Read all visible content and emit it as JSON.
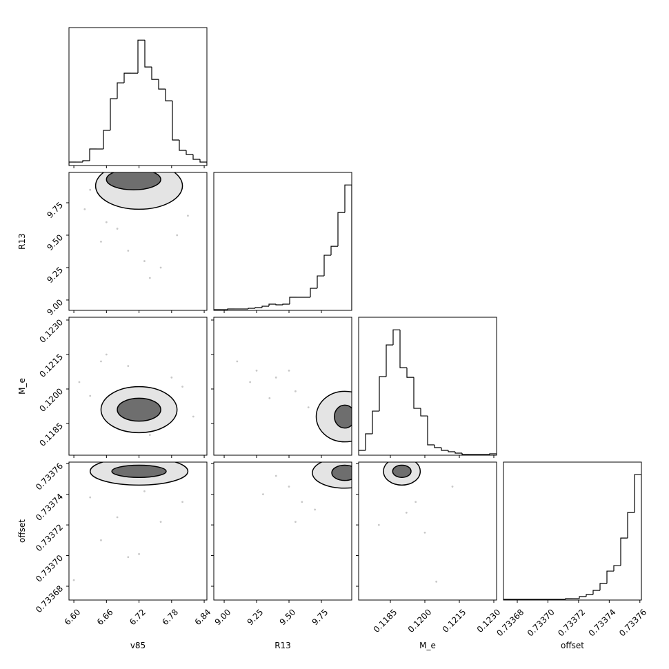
{
  "chart_data": {
    "type": "corner",
    "variables": [
      {
        "name": "v85",
        "range": [
          6.591,
          6.845
        ],
        "ticks": [
          {
            "value": 6.6,
            "label": "6.60"
          },
          6.66,
          6.72,
          6.78,
          6.84
        ],
        "bins": [
          6.591,
          6.6037,
          6.6164,
          6.6291,
          6.6418,
          6.6545,
          6.6672,
          6.6799,
          6.6926,
          6.7053,
          6.718,
          6.7307,
          6.7434,
          6.7561,
          6.7688,
          6.7815,
          6.7942,
          6.8069,
          6.8196,
          6.8323,
          6.845
        ],
        "counts": [
          5,
          5,
          7,
          24,
          24,
          51,
          97,
          120,
          134,
          134,
          182,
          143,
          125,
          111,
          94,
          37,
          22,
          16,
          9,
          5
        ]
      },
      {
        "name": "R13",
        "range": [
          8.92,
          9.984
        ],
        "ticks": [
          {
            "value": 9,
            "label": "9.00"
          },
          9.25,
          {
            "value": 9.5,
            "label": "9.50"
          },
          9.75
        ],
        "bins": [
          8.92,
          8.9732,
          9.0264,
          9.0796,
          9.1328,
          9.186,
          9.2392,
          9.2924,
          9.3456,
          9.3988,
          9.452,
          9.5052,
          9.5584,
          9.6116,
          9.6648,
          9.718,
          9.7712,
          9.8244,
          9.8776,
          9.9308,
          9.984
        ],
        "counts": [
          1,
          1,
          2,
          2,
          2,
          3,
          4,
          6,
          9,
          8,
          9,
          19,
          19,
          19,
          32,
          50,
          80,
          93,
          142,
          182
        ]
      },
      {
        "name": "M_e",
        "range": [
          0.11712,
          0.12312
        ],
        "ticks": [
          0.1185,
          {
            "value": 0.12,
            "label": "0.1200"
          },
          0.1215,
          {
            "value": 0.123,
            "label": "0.1230"
          }
        ],
        "bins": [
          0.11712,
          0.11742,
          0.11772,
          0.11802,
          0.11832,
          0.11862,
          0.11892,
          0.11922,
          0.11952,
          0.11982,
          0.12012,
          0.12042,
          0.12072,
          0.12102,
          0.12132,
          0.12162,
          0.12192,
          0.12222,
          0.12252,
          0.12282,
          0.12312
        ],
        "counts": [
          7,
          31,
          64,
          114,
          160,
          182,
          127,
          113,
          68,
          57,
          15,
          11,
          7,
          5,
          3,
          1,
          1,
          1,
          1,
          2
        ]
      },
      {
        "name": "offset",
        "range": [
          0.733671,
          0.733761
        ],
        "ticks": [
          0.73368,
          {
            "value": 0.7337,
            "label": "0.73370"
          },
          0.73372,
          0.73374,
          0.73376
        ],
        "bins": [
          0.733671,
          0.7336755,
          0.73368,
          0.7336845,
          0.733689,
          0.7336935,
          0.733698,
          0.7337025,
          0.733707,
          0.7337115,
          0.733716,
          0.7337205,
          0.733725,
          0.7337295,
          0.733734,
          0.7337385,
          0.733743,
          0.7337475,
          0.733752,
          0.7337565,
          0.733761
        ],
        "counts": [
          1,
          1,
          1,
          1,
          1,
          1,
          1,
          1,
          1,
          2,
          2,
          5,
          8,
          14,
          24,
          42,
          50,
          90,
          127,
          182
        ]
      }
    ],
    "panels": [
      {
        "points_x": [
          6.62,
          6.65,
          6.68,
          6.7,
          6.73,
          6.76,
          6.66,
          6.79,
          6.74,
          6.69,
          6.81,
          6.63
        ],
        "points_y": [
          9.7,
          9.45,
          9.55,
          9.38,
          9.3,
          9.25,
          9.6,
          9.5,
          9.17,
          9.9,
          9.65,
          9.85
        ],
        "contours": [
          {
            "center": [
              6.72,
              9.88
            ],
            "radii": [
              0.08,
              0.18
            ]
          },
          {
            "center": [
              6.71,
              9.93
            ],
            "radii": [
              0.05,
              0.08
            ]
          }
        ]
      },
      {
        "points_x": [
          6.61,
          6.65,
          6.7,
          6.78,
          6.82,
          6.68,
          6.74,
          6.63,
          6.8,
          6.66
        ],
        "points_y": [
          0.1203,
          0.1212,
          0.121,
          0.1205,
          0.1188,
          0.1183,
          0.118,
          0.1197,
          0.1201,
          0.1215
        ],
        "contours": [
          {
            "center": [
              6.72,
              0.1191
            ],
            "radii": [
              0.07,
              0.001
            ]
          },
          {
            "center": [
              6.72,
              0.1191
            ],
            "radii": [
              0.04,
              0.0005
            ]
          }
        ]
      },
      {
        "points_x": [
          9.1,
          9.25,
          9.4,
          9.55,
          9.35,
          9.5,
          9.2,
          9.65
        ],
        "points_y": [
          0.1212,
          0.1208,
          0.1205,
          0.1199,
          0.1196,
          0.1208,
          0.1203,
          0.1192
        ],
        "contours": [
          {
            "center": [
              9.93,
              0.1188
            ],
            "radii": [
              0.22,
              0.0011
            ]
          },
          {
            "center": [
              9.93,
              0.1188
            ],
            "radii": [
              0.08,
              0.0005
            ]
          }
        ]
      },
      {
        "points_x": [
          6.6,
          6.65,
          6.7,
          6.72,
          6.76,
          6.8,
          6.68,
          6.63,
          6.73
        ],
        "points_y": [
          0.733684,
          0.73371,
          0.733699,
          0.733701,
          0.733722,
          0.733735,
          0.733725,
          0.733738,
          0.733742
        ],
        "contours": [
          {
            "center": [
              6.72,
              0.733755
            ],
            "radii": [
              0.09,
              9e-06
            ]
          },
          {
            "center": [
              6.72,
              0.733755
            ],
            "radii": [
              0.05,
              4e-06
            ]
          }
        ]
      },
      {
        "points_x": [
          9.3,
          9.5,
          9.6,
          9.7,
          9.4,
          9.55
        ],
        "points_y": [
          0.73374,
          0.733745,
          0.733735,
          0.73373,
          0.733752,
          0.733722
        ],
        "contours": [
          {
            "center": [
              9.93,
              0.733754
            ],
            "radii": [
              0.25,
              1e-05
            ]
          },
          {
            "center": [
              9.93,
              0.733754
            ],
            "radii": [
              0.1,
              5e-06
            ]
          }
        ]
      },
      {
        "points_x": [
          0.118,
          0.1192,
          0.1196,
          0.1205,
          0.1212,
          0.12
        ],
        "points_y": [
          0.73372,
          0.733728,
          0.733735,
          0.733683,
          0.733745,
          0.733715
        ],
        "contours": [
          {
            "center": [
              0.119,
              0.733755
            ],
            "radii": [
              0.0008,
              9e-06
            ]
          },
          {
            "center": [
              0.119,
              0.733755
            ],
            "radii": [
              0.0004,
              4e-06
            ]
          }
        ]
      }
    ]
  }
}
